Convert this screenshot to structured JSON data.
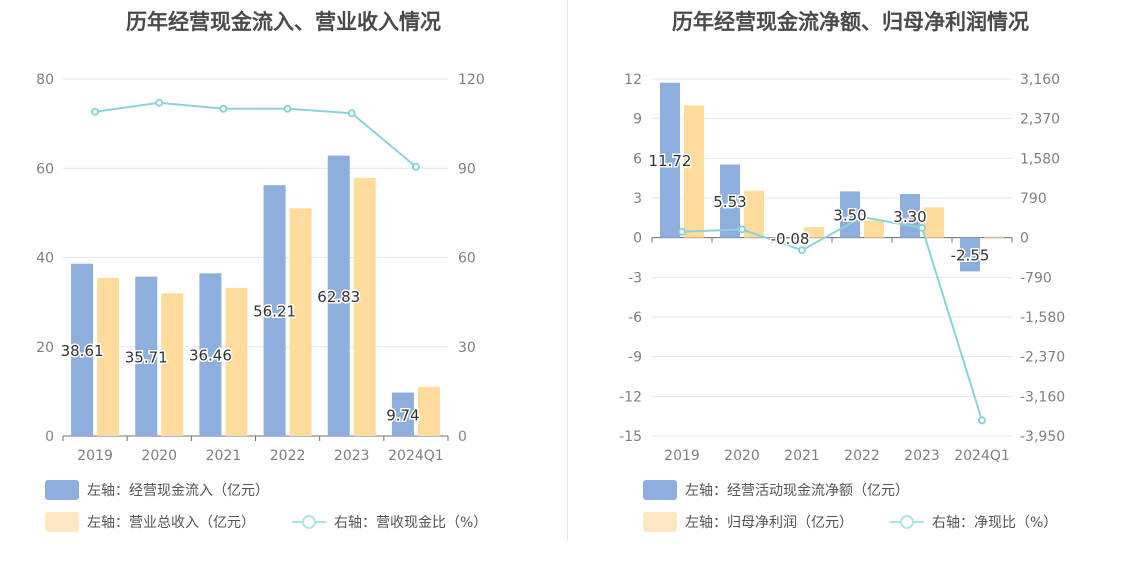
{
  "colors": {
    "bar1": "#8eaedd",
    "bar2": "#ffdb9c",
    "line": "#8ad3da",
    "grid": "#e4e6f0",
    "axis_text": "#808080"
  },
  "legend_swatch_colors": {
    "bar1": "#8eaedd",
    "bar2": "#ffe7c2",
    "line": "#aee3e8"
  },
  "chart_data": [
    {
      "type": "bar",
      "title": "历年经营现金流入、营业收入情况",
      "categories": [
        "2019",
        "2020",
        "2021",
        "2022",
        "2023",
        "2024Q1"
      ],
      "y_left": {
        "ticks": [
          "0",
          "20",
          "40",
          "60",
          "80"
        ],
        "min": 0,
        "max": 80
      },
      "y_right": {
        "ticks": [
          "0",
          "30",
          "60",
          "90",
          "120"
        ],
        "min": 0,
        "max": 120
      },
      "series": [
        {
          "name": "左轴：经营现金流入（亿元）",
          "axis": "left",
          "kind": "bar",
          "values": [
            38.61,
            35.71,
            36.46,
            56.21,
            62.83,
            9.74
          ],
          "labels": [
            "38.61",
            "35.71",
            "36.46",
            "56.21",
            "62.83",
            "9.74"
          ]
        },
        {
          "name": "左轴：营业总收入（亿元）",
          "axis": "left",
          "kind": "bar",
          "values": [
            35.4,
            32.0,
            33.2,
            51.0,
            57.8,
            11.0
          ]
        },
        {
          "name": "右轴：营收现金比（%）",
          "axis": "right",
          "kind": "line",
          "values": [
            109,
            112,
            110,
            110,
            108.5,
            90.5
          ]
        }
      ]
    },
    {
      "type": "bar",
      "title": "历年经营现金流净额、归母净利润情况",
      "categories": [
        "2019",
        "2020",
        "2021",
        "2022",
        "2023",
        "2024Q1"
      ],
      "y_left": {
        "ticks": [
          "-15",
          "-12",
          "-9",
          "-6",
          "-3",
          "0",
          "3",
          "6",
          "9",
          "12"
        ],
        "min": -15,
        "max": 12
      },
      "y_right": {
        "ticks": [
          "-3,950",
          "-3,160",
          "-2,370",
          "-1,580",
          "-790",
          "0",
          "790",
          "1,580",
          "2,370",
          "3,160"
        ],
        "min": -3950,
        "max": 3160
      },
      "series": [
        {
          "name": "左轴：经营活动现金流净额（亿元）",
          "axis": "left",
          "kind": "bar",
          "values": [
            11.72,
            5.53,
            -0.08,
            3.5,
            3.3,
            -2.55
          ],
          "labels": [
            "11.72",
            "5.53",
            "-0.08",
            "3.50",
            "3.30",
            "-2.55"
          ]
        },
        {
          "name": "左轴：归母净利润（亿元）",
          "axis": "left",
          "kind": "bar",
          "values": [
            10.0,
            3.55,
            0.8,
            1.3,
            2.3,
            0.08
          ]
        },
        {
          "name": "右轴：净现比（%）",
          "axis": "right",
          "kind": "line",
          "values": [
            117,
            164,
            -250,
            411,
            198,
            -3640
          ]
        }
      ]
    }
  ]
}
